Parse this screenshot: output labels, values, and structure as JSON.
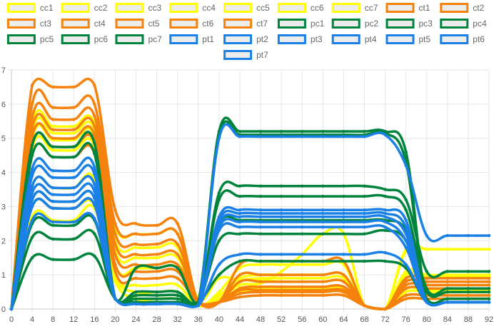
{
  "chart_data": {
    "type": "line",
    "title": "",
    "xlabel": "",
    "ylabel": "",
    "grid": true,
    "legend_position": "top",
    "xlim": [
      0,
      92
    ],
    "ylim": [
      0,
      7
    ],
    "x_ticks": [
      0,
      4,
      8,
      12,
      16,
      20,
      24,
      28,
      32,
      36,
      40,
      44,
      48,
      52,
      56,
      60,
      64,
      68,
      72,
      76,
      80,
      84,
      88,
      92
    ],
    "y_ticks": [
      0,
      1,
      2,
      3,
      4,
      5,
      6,
      7
    ],
    "x": [
      0,
      4,
      8,
      12,
      16,
      20,
      24,
      28,
      32,
      36,
      40,
      44,
      48,
      52,
      56,
      60,
      64,
      68,
      72,
      76,
      80,
      84,
      88,
      92
    ],
    "series": [
      {
        "name": "cc1",
        "color": "#ffff00",
        "values": [
          0,
          5.4,
          5.35,
          5.35,
          5.45,
          2.4,
          2.2,
          2.2,
          2.2,
          0.3,
          0.9,
          0.85,
          0.85,
          0.8,
          0.8,
          0.8,
          0.8,
          0.1,
          0,
          1.75,
          1.75,
          1.75,
          1.75,
          1.75
        ]
      },
      {
        "name": "cc2",
        "color": "#ffff00",
        "values": [
          0,
          5.2,
          5.15,
          5.15,
          5.25,
          2.0,
          1.8,
          1.8,
          1.8,
          0.2,
          0.5,
          1.2,
          1.3,
          1.3,
          1.3,
          1.3,
          1.3,
          0.1,
          0,
          1.0,
          0.95,
          0.95,
          0.95,
          0.95
        ]
      },
      {
        "name": "cc3",
        "color": "#ffff00",
        "values": [
          0,
          5.0,
          4.95,
          4.95,
          5.05,
          1.7,
          1.5,
          1.5,
          1.5,
          0.2,
          0.4,
          0.9,
          1.0,
          1.0,
          1.0,
          1.0,
          1.0,
          0.1,
          0,
          1.1,
          1.0,
          1.0,
          1.0,
          1.0
        ]
      },
      {
        "name": "cc4",
        "color": "#ffff00",
        "values": [
          0,
          4.7,
          4.65,
          4.65,
          4.75,
          1.3,
          1.2,
          1.2,
          1.2,
          0.15,
          0.3,
          0.8,
          0.9,
          0.9,
          0.9,
          0.9,
          0.9,
          0.1,
          0,
          0.6,
          0.55,
          0.55,
          0.55,
          0.55
        ]
      },
      {
        "name": "cc5",
        "color": "#ffff00",
        "values": [
          0,
          3.6,
          3.55,
          3.55,
          3.8,
          1.0,
          0.7,
          0.7,
          0.7,
          0.1,
          0.3,
          0.7,
          0.75,
          1.1,
          1.6,
          2.2,
          2.2,
          0.1,
          0,
          1.7,
          1.75,
          1.75,
          1.75,
          1.75
        ]
      },
      {
        "name": "cc6",
        "color": "#ffff00",
        "values": [
          0,
          3.0,
          2.95,
          2.95,
          3.05,
          0.9,
          0.5,
          0.5,
          0.5,
          0.1,
          0.2,
          0.6,
          0.6,
          0.6,
          0.6,
          0.6,
          0.6,
          0.1,
          0,
          0.5,
          0.5,
          0.5,
          0.5,
          0.5
        ]
      },
      {
        "name": "cc7",
        "color": "#ffff00",
        "values": [
          0,
          2.7,
          2.6,
          2.6,
          2.95,
          0.8,
          0.3,
          0.3,
          0.3,
          0.1,
          0.2,
          0.5,
          0.5,
          0.5,
          0.5,
          0.5,
          0.5,
          0.1,
          0,
          0.3,
          0.3,
          0.3,
          0.3,
          0.3
        ]
      },
      {
        "name": "ct1",
        "color": "#f5820d",
        "values": [
          0,
          6.55,
          6.5,
          6.5,
          6.55,
          2.9,
          2.5,
          2.45,
          2.5,
          0.2,
          0.2,
          1.3,
          1.4,
          1.4,
          1.4,
          1.4,
          1.4,
          0.1,
          0,
          0.9,
          0.9,
          0.9,
          0.9,
          0.9
        ]
      },
      {
        "name": "ct2",
        "color": "#f5820d",
        "values": [
          0,
          6.0,
          5.9,
          5.9,
          6.0,
          2.5,
          2.2,
          2.2,
          2.2,
          0.2,
          0.2,
          1.0,
          1.0,
          1.0,
          1.0,
          1.0,
          1.0,
          0.1,
          0,
          0.8,
          0.8,
          0.8,
          0.8,
          0.8
        ]
      },
      {
        "name": "ct3",
        "color": "#f5820d",
        "values": [
          0,
          5.6,
          5.55,
          5.55,
          5.65,
          2.2,
          1.9,
          1.9,
          1.9,
          0.2,
          0.2,
          0.8,
          0.8,
          0.8,
          0.8,
          0.8,
          0.8,
          0.1,
          0,
          0.8,
          0.8,
          0.8,
          0.8,
          0.8
        ]
      },
      {
        "name": "ct4",
        "color": "#f5820d",
        "values": [
          0,
          5.3,
          5.25,
          5.25,
          5.35,
          1.9,
          1.6,
          1.6,
          1.6,
          0.2,
          0.2,
          0.6,
          0.65,
          0.65,
          0.65,
          0.65,
          0.65,
          0.1,
          0,
          0.7,
          0.7,
          0.7,
          0.7,
          0.7
        ]
      },
      {
        "name": "ct5",
        "color": "#f5820d",
        "values": [
          0,
          5.05,
          5.0,
          5.0,
          5.1,
          1.6,
          1.3,
          1.3,
          1.3,
          0.2,
          0.2,
          0.55,
          0.55,
          0.55,
          0.55,
          0.55,
          0.55,
          0.1,
          0,
          0.6,
          0.6,
          0.6,
          0.6,
          0.6
        ]
      },
      {
        "name": "ct6",
        "color": "#f5820d",
        "values": [
          0,
          4.8,
          4.75,
          4.75,
          4.85,
          1.3,
          1.1,
          1.1,
          1.1,
          0.2,
          0.2,
          0.45,
          0.5,
          0.5,
          0.5,
          0.5,
          0.5,
          0.1,
          0,
          0.4,
          0.4,
          0.4,
          0.4,
          0.4
        ]
      },
      {
        "name": "ct7",
        "color": "#f5820d",
        "values": [
          0,
          4.5,
          4.45,
          4.45,
          4.55,
          1.1,
          0.9,
          0.9,
          0.9,
          0.2,
          0.2,
          0.35,
          0.4,
          0.4,
          0.4,
          0.4,
          0.4,
          0.1,
          0,
          0.3,
          0.3,
          0.3,
          0.3,
          0.3
        ]
      },
      {
        "name": "pc1",
        "color": "#00843d",
        "values": [
          0,
          4.8,
          4.75,
          4.75,
          4.85,
          0.3,
          0.2,
          0.2,
          0.2,
          0.2,
          5.2,
          5.2,
          5.2,
          5.2,
          5.2,
          5.2,
          5.2,
          5.2,
          5.2,
          4.6,
          0.2,
          0.2,
          0.2,
          0.2
        ]
      },
      {
        "name": "pc2",
        "color": "#00843d",
        "values": [
          0,
          4.5,
          4.45,
          4.45,
          4.55,
          0.3,
          0.2,
          0.2,
          0.2,
          0.2,
          5.1,
          5.1,
          5.1,
          5.1,
          5.1,
          5.1,
          5.1,
          5.1,
          5.15,
          4.3,
          0.2,
          0.2,
          0.2,
          0.2
        ]
      },
      {
        "name": "pc3",
        "color": "#00843d",
        "values": [
          0,
          3.2,
          3.15,
          3.15,
          3.25,
          0.3,
          1.2,
          1.2,
          1.2,
          0.2,
          3.4,
          3.6,
          3.6,
          3.6,
          3.6,
          3.6,
          3.6,
          3.6,
          3.5,
          3.2,
          1.1,
          1.1,
          1.1,
          1.1
        ]
      },
      {
        "name": "pc4",
        "color": "#00843d",
        "values": [
          0,
          3.0,
          2.95,
          2.95,
          3.05,
          0.3,
          0.5,
          0.5,
          0.5,
          0.2,
          3.2,
          3.3,
          3.3,
          3.3,
          3.3,
          3.3,
          3.3,
          3.3,
          3.3,
          2.9,
          0.6,
          0.6,
          0.6,
          0.6
        ]
      },
      {
        "name": "pc5",
        "color": "#00843d",
        "values": [
          0,
          2.5,
          2.45,
          2.45,
          2.6,
          0.3,
          0.4,
          0.4,
          0.4,
          0.2,
          2.5,
          2.6,
          2.6,
          2.6,
          2.6,
          2.6,
          2.6,
          2.6,
          2.6,
          2.3,
          0.5,
          0.5,
          0.5,
          0.5
        ]
      },
      {
        "name": "pc6",
        "color": "#00843d",
        "values": [
          0,
          2.1,
          2.05,
          2.05,
          2.2,
          0.3,
          0.3,
          0.3,
          0.3,
          0.2,
          2.0,
          2.2,
          2.2,
          2.2,
          2.2,
          2.2,
          2.2,
          2.2,
          2.3,
          2.0,
          0.3,
          0.3,
          0.3,
          0.3
        ]
      },
      {
        "name": "pc7",
        "color": "#00843d",
        "values": [
          0,
          1.5,
          1.45,
          1.45,
          1.55,
          0.3,
          0.2,
          0.2,
          0.2,
          0.2,
          1.0,
          1.4,
          1.4,
          1.4,
          1.4,
          1.4,
          1.4,
          1.4,
          1.4,
          1.2,
          0.2,
          0.2,
          0.2,
          0.2
        ]
      },
      {
        "name": "pt1",
        "color": "#1a80e6",
        "values": [
          0,
          4.1,
          4.05,
          4.05,
          4.15,
          0.3,
          0.15,
          0.15,
          0.15,
          0.1,
          5.0,
          5.05,
          5.05,
          5.05,
          5.05,
          5.05,
          5.05,
          5.05,
          5.1,
          4.2,
          2.15,
          2.15,
          2.15,
          2.15
        ]
      },
      {
        "name": "pt2",
        "color": "#1a80e6",
        "values": [
          0,
          3.9,
          3.85,
          3.85,
          3.95,
          0.3,
          0.15,
          0.15,
          0.15,
          0.1,
          2.7,
          2.9,
          2.9,
          2.9,
          2.9,
          2.9,
          2.9,
          2.9,
          2.9,
          2.6,
          0.2,
          0.2,
          0.2,
          0.2
        ]
      },
      {
        "name": "pt3",
        "color": "#1a80e6",
        "values": [
          0,
          3.6,
          3.55,
          3.55,
          3.65,
          0.3,
          0.15,
          0.15,
          0.15,
          0.1,
          2.6,
          2.8,
          2.8,
          2.8,
          2.8,
          2.8,
          2.8,
          2.8,
          2.8,
          2.4,
          0.2,
          0.2,
          0.2,
          0.2
        ]
      },
      {
        "name": "pt4",
        "color": "#1a80e6",
        "values": [
          0,
          3.4,
          3.35,
          3.35,
          3.45,
          0.3,
          0.15,
          0.15,
          0.15,
          0.1,
          2.5,
          2.7,
          2.7,
          2.7,
          2.7,
          2.7,
          2.7,
          2.7,
          2.7,
          2.2,
          0.2,
          0.2,
          0.2,
          0.2
        ]
      },
      {
        "name": "pt5",
        "color": "#1a80e6",
        "values": [
          0,
          3.2,
          3.15,
          3.15,
          3.25,
          0.3,
          0.15,
          0.15,
          0.15,
          0.1,
          2.4,
          2.55,
          2.55,
          2.55,
          2.55,
          2.55,
          2.55,
          2.55,
          2.55,
          2.0,
          0.2,
          0.2,
          0.2,
          0.2
        ]
      },
      {
        "name": "pt6",
        "color": "#1a80e6",
        "values": [
          0,
          3.0,
          2.95,
          2.95,
          3.05,
          0.3,
          0.15,
          0.15,
          0.15,
          0.1,
          2.3,
          2.4,
          2.4,
          2.4,
          2.4,
          2.4,
          2.4,
          2.4,
          2.4,
          1.8,
          0.2,
          0.2,
          0.2,
          0.2
        ]
      },
      {
        "name": "pt7",
        "color": "#1a80e6",
        "values": [
          0,
          2.6,
          2.55,
          2.55,
          2.65,
          0.3,
          0.15,
          0.15,
          0.15,
          0.1,
          1.3,
          1.6,
          1.6,
          1.6,
          1.6,
          1.6,
          1.6,
          1.6,
          1.65,
          1.3,
          0.2,
          0.2,
          0.2,
          0.2
        ]
      }
    ]
  }
}
